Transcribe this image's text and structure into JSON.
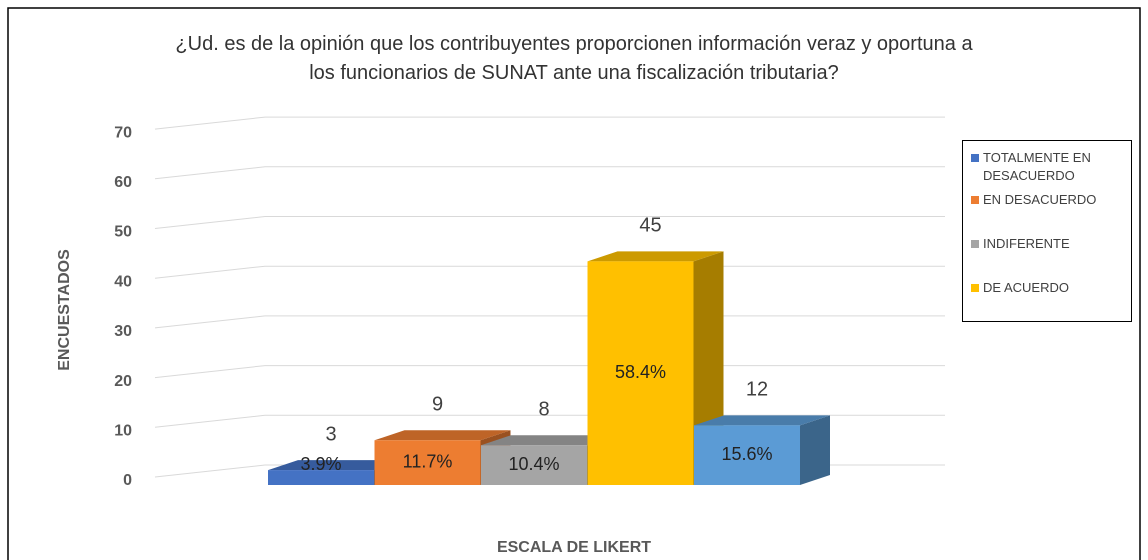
{
  "chart_data": {
    "type": "bar3d",
    "title": "¿Ud. es de la opinión que los contribuyentes proporcionen información veraz y oportuna a los funcionarios de SUNAT ante una fiscalización tributaria?",
    "xlabel": "ESCALA DE LIKERT",
    "ylabel": "ENCUESTADOS",
    "categories": [
      "TOTALMENTE EN DESACUERDO",
      "EN DESACUERDO",
      "INDIFERENTE",
      "DE ACUERDO",
      null
    ],
    "values": [
      3,
      9,
      8,
      45,
      12
    ],
    "percent_labels": [
      "3.9%",
      "11.7%",
      "10.4%",
      "58.4%",
      "15.6%"
    ],
    "colors": [
      "#4472c4",
      "#ed7d31",
      "#a5a5a5",
      "#ffc000",
      "#5b9bd5"
    ],
    "ylim": [
      0,
      70
    ],
    "yticks": [
      0,
      10,
      20,
      30,
      40,
      50,
      60,
      70
    ],
    "grid": true,
    "legend": "right"
  }
}
